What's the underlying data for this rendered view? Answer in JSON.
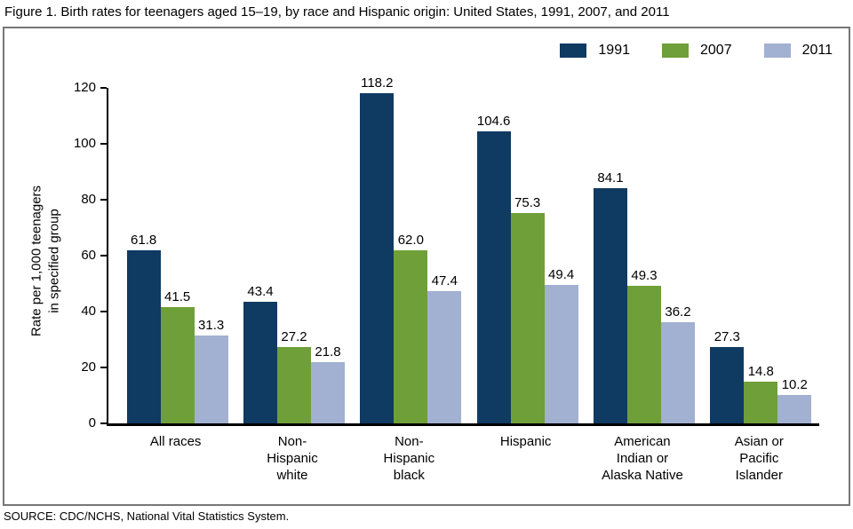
{
  "figure": {
    "title": "Figure 1. Birth rates for teenagers aged 15–19, by race and Hispanic origin: United States, 1991, 2007, and 2011",
    "source": "SOURCE: CDC/NCHS, National Vital Statistics System."
  },
  "chart_data": {
    "type": "bar",
    "title": "Birth rates for teenagers aged 15–19, by race and Hispanic origin: United States, 1991, 2007, and 2011",
    "ylabel": "Rate per 1,000 teenagers\nin specified group",
    "xlabel": "",
    "ylim": [
      0,
      120
    ],
    "yticks": [
      0,
      20,
      40,
      60,
      80,
      100,
      120
    ],
    "grid": false,
    "value_labels": true,
    "legend_position": "top-right",
    "categories": [
      "All races",
      "Non-\nHispanic\nwhite",
      "Non-\nHispanic\nblack",
      "Hispanic",
      "American\nIndian or\nAlaska Native",
      "Asian or\nPacific\nIslander"
    ],
    "series": [
      {
        "name": "1991",
        "color": "#0f3a62",
        "values": [
          61.8,
          43.4,
          118.2,
          104.6,
          84.1,
          27.3
        ],
        "labels": [
          "61.8",
          "43.4",
          "118.2",
          "104.6",
          "84.1",
          "27.3"
        ]
      },
      {
        "name": "2007",
        "color": "#6f9f38",
        "values": [
          41.5,
          27.2,
          62.0,
          75.3,
          49.3,
          14.8
        ],
        "labels": [
          "41.5",
          "27.2",
          "62.0",
          "75.3",
          "49.3",
          "14.8"
        ]
      },
      {
        "name": "2011",
        "color": "#a2b0d1",
        "values": [
          31.3,
          21.8,
          47.4,
          49.4,
          36.2,
          10.2
        ],
        "labels": [
          "31.3",
          "21.8",
          "47.4",
          "49.4",
          "36.2",
          "10.2"
        ]
      }
    ]
  }
}
